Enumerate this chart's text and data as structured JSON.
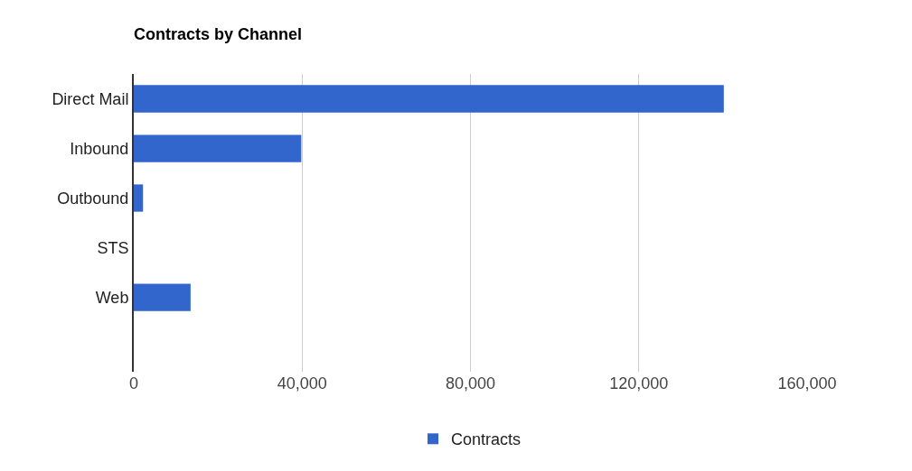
{
  "chart_data": {
    "type": "bar",
    "orientation": "horizontal",
    "title": "Contracts by Channel",
    "categories": [
      "Direct Mail",
      "Inbound",
      "Outbound",
      "STS",
      "Web",
      null
    ],
    "series": [
      {
        "name": "Contracts",
        "color": "#3366cc",
        "values": [
          140200,
          39800,
          2200,
          0,
          13500,
          0
        ]
      }
    ],
    "xlim": [
      0,
      160000
    ],
    "xticks": [
      0,
      {
        "value": 40000,
        "label": "40,000"
      },
      {
        "value": 80000,
        "label": "80,000"
      },
      {
        "value": 120000,
        "label": "120,000"
      },
      {
        "value": 160000,
        "label": "160,000"
      }
    ],
    "grid": "x",
    "legend": "bottom"
  }
}
